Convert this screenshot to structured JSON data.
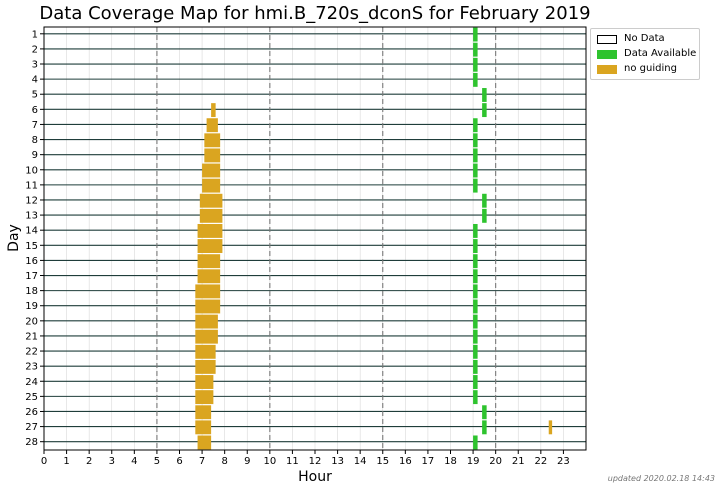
{
  "title": "Data Coverage Map for hmi.B_720s_dconS for February 2019",
  "updated": "updated 2020.02.18 14:43",
  "legend": {
    "items": [
      {
        "label": "No Data",
        "color": "#ffffff",
        "border": "#000000"
      },
      {
        "label": "Data Available",
        "color": "#2ec32e",
        "border": "#2ec32e"
      },
      {
        "label": "no guiding",
        "color": "#daa520",
        "border": "#daa520"
      }
    ]
  },
  "chart_data": {
    "type": "heatmap",
    "title": "Data Coverage Map for hmi.B_720s_dconS for February 2019",
    "xlabel": "Hour",
    "ylabel": "Day",
    "xlim": [
      0,
      24
    ],
    "ylim": [
      1,
      28
    ],
    "x_ticks": [
      "0",
      "1",
      "2",
      "3",
      "4",
      "5",
      "6",
      "7",
      "8",
      "9",
      "10",
      "11",
      "12",
      "13",
      "14",
      "15",
      "16",
      "17",
      "18",
      "19",
      "20",
      "21",
      "22",
      "23"
    ],
    "y_ticks": [
      "1",
      "2",
      "3",
      "4",
      "5",
      "6",
      "7",
      "8",
      "9",
      "10",
      "11",
      "12",
      "13",
      "14",
      "15",
      "16",
      "17",
      "18",
      "19",
      "20",
      "21",
      "22",
      "23",
      "24",
      "25",
      "26",
      "27",
      "28"
    ],
    "dashed_vlines": [
      5,
      10,
      15,
      20
    ],
    "colors": {
      "data_available": "#2ec32e",
      "no_guiding": "#daa520",
      "grid": "#1f3d3a"
    },
    "data_available": [
      {
        "day": 1,
        "start": 19.0,
        "end": 19.2
      },
      {
        "day": 2,
        "start": 19.0,
        "end": 19.2
      },
      {
        "day": 3,
        "start": 19.0,
        "end": 19.2
      },
      {
        "day": 4,
        "start": 19.0,
        "end": 19.2
      },
      {
        "day": 5,
        "start": 19.4,
        "end": 19.6
      },
      {
        "day": 6,
        "start": 19.4,
        "end": 19.6
      },
      {
        "day": 7,
        "start": 19.0,
        "end": 19.2
      },
      {
        "day": 8,
        "start": 19.0,
        "end": 19.2
      },
      {
        "day": 9,
        "start": 19.0,
        "end": 19.2
      },
      {
        "day": 10,
        "start": 19.0,
        "end": 19.2
      },
      {
        "day": 11,
        "start": 19.0,
        "end": 19.2
      },
      {
        "day": 12,
        "start": 19.4,
        "end": 19.6
      },
      {
        "day": 13,
        "start": 19.4,
        "end": 19.6
      },
      {
        "day": 14,
        "start": 19.0,
        "end": 19.2
      },
      {
        "day": 15,
        "start": 19.0,
        "end": 19.2
      },
      {
        "day": 16,
        "start": 19.0,
        "end": 19.2
      },
      {
        "day": 17,
        "start": 19.0,
        "end": 19.2
      },
      {
        "day": 18,
        "start": 19.0,
        "end": 19.2
      },
      {
        "day": 19,
        "start": 19.0,
        "end": 19.2
      },
      {
        "day": 20,
        "start": 19.0,
        "end": 19.2
      },
      {
        "day": 21,
        "start": 19.0,
        "end": 19.2
      },
      {
        "day": 22,
        "start": 19.0,
        "end": 19.2
      },
      {
        "day": 23,
        "start": 19.0,
        "end": 19.2
      },
      {
        "day": 24,
        "start": 19.0,
        "end": 19.2
      },
      {
        "day": 25,
        "start": 19.0,
        "end": 19.2
      },
      {
        "day": 26,
        "start": 19.4,
        "end": 19.6
      },
      {
        "day": 27,
        "start": 19.4,
        "end": 19.6
      },
      {
        "day": 28,
        "start": 19.0,
        "end": 19.2
      }
    ],
    "no_guiding": [
      {
        "day": 6,
        "start": 7.4,
        "end": 7.6
      },
      {
        "day": 7,
        "start": 7.2,
        "end": 7.7
      },
      {
        "day": 8,
        "start": 7.1,
        "end": 7.8
      },
      {
        "day": 9,
        "start": 7.1,
        "end": 7.8
      },
      {
        "day": 10,
        "start": 7.0,
        "end": 7.8
      },
      {
        "day": 11,
        "start": 7.0,
        "end": 7.8
      },
      {
        "day": 12,
        "start": 6.9,
        "end": 7.9
      },
      {
        "day": 13,
        "start": 6.9,
        "end": 7.9
      },
      {
        "day": 14,
        "start": 6.8,
        "end": 7.9
      },
      {
        "day": 15,
        "start": 6.8,
        "end": 7.9
      },
      {
        "day": 16,
        "start": 6.8,
        "end": 7.8
      },
      {
        "day": 17,
        "start": 6.8,
        "end": 7.8
      },
      {
        "day": 18,
        "start": 6.7,
        "end": 7.8
      },
      {
        "day": 19,
        "start": 6.7,
        "end": 7.8
      },
      {
        "day": 20,
        "start": 6.7,
        "end": 7.7
      },
      {
        "day": 21,
        "start": 6.7,
        "end": 7.7
      },
      {
        "day": 22,
        "start": 6.7,
        "end": 7.6
      },
      {
        "day": 23,
        "start": 6.7,
        "end": 7.6
      },
      {
        "day": 24,
        "start": 6.7,
        "end": 7.5
      },
      {
        "day": 25,
        "start": 6.7,
        "end": 7.5
      },
      {
        "day": 26,
        "start": 6.7,
        "end": 7.4
      },
      {
        "day": 27,
        "start": 6.7,
        "end": 7.4
      },
      {
        "day": 27,
        "start": 22.35,
        "end": 22.5
      },
      {
        "day": 28,
        "start": 6.8,
        "end": 7.4
      }
    ]
  }
}
